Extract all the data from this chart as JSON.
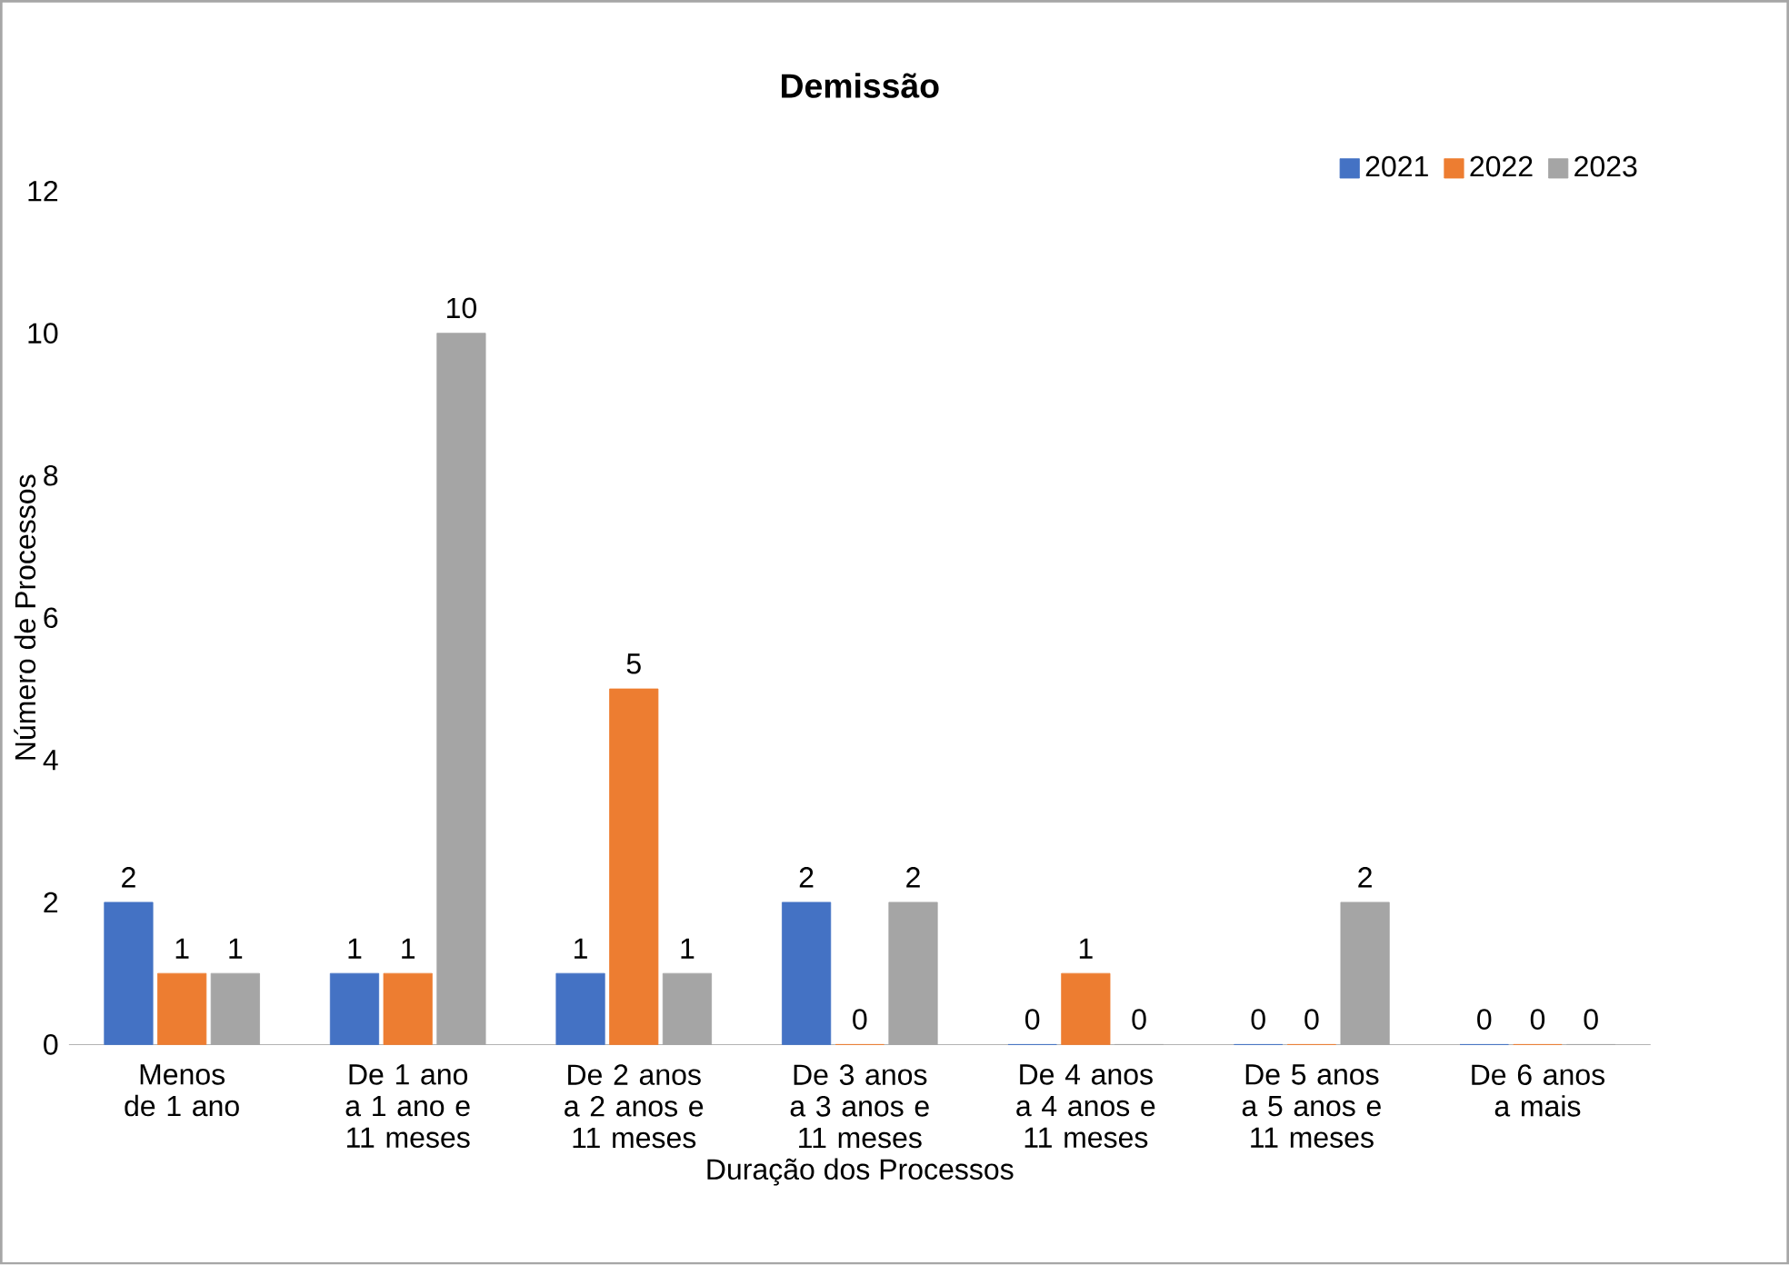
{
  "chart_data": {
    "type": "bar",
    "title": "Demissão",
    "xlabel": "Duração dos Processos",
    "ylabel": "Número de Processos",
    "categories": [
      "Menos de 1 ano",
      "De 1 ano a 1 ano e 11 meses",
      "De 2 anos a 2 anos e 11 meses",
      "De 3 anos a 3 anos e 11 meses",
      "De 4 anos a 4 anos e 11 meses",
      "De 5 anos a 5 anos e 11 meses",
      "De 6 anos a mais"
    ],
    "series": [
      {
        "name": "2021",
        "color": "#4472c4",
        "values": [
          2,
          1,
          1,
          2,
          0,
          0,
          0
        ]
      },
      {
        "name": "2022",
        "color": "#ed7d31",
        "values": [
          1,
          1,
          5,
          0,
          1,
          0,
          0
        ]
      },
      {
        "name": "2023",
        "color": "#a5a5a5",
        "values": [
          1,
          10,
          1,
          2,
          0,
          2,
          0
        ]
      }
    ],
    "ylim": [
      0,
      12
    ],
    "yticks": [
      0,
      2,
      4,
      6,
      8,
      10,
      12
    ],
    "data_labels": true,
    "legend": "top right"
  }
}
